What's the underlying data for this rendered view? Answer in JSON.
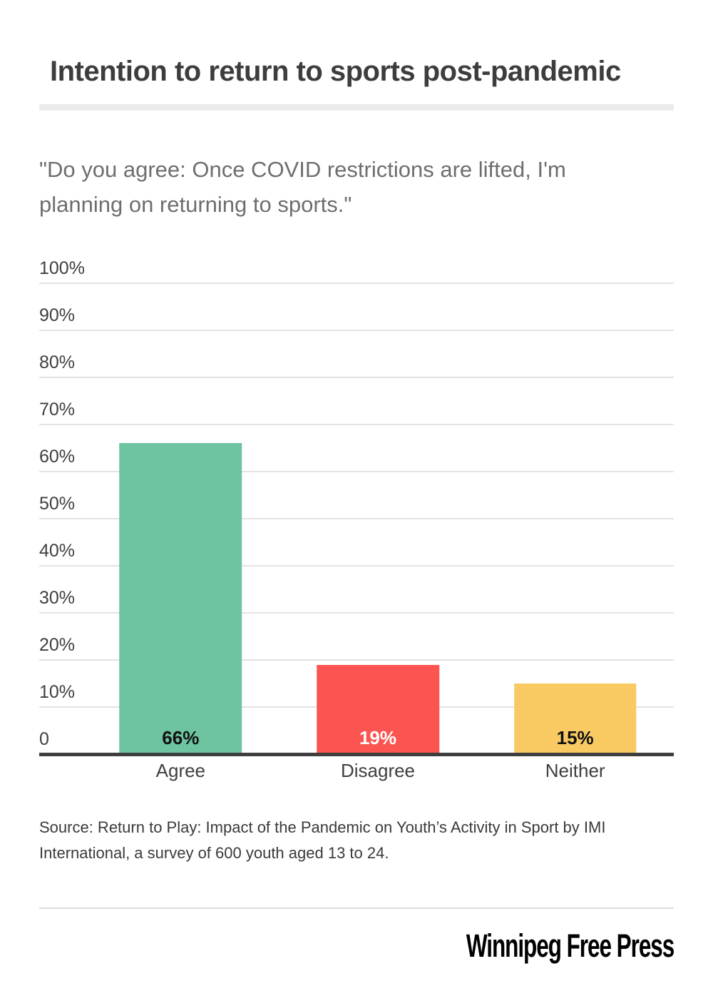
{
  "page": {
    "title": "Intention to return to sports post-pandemic",
    "subtitle": "\"Do you agree: Once COVID restrictions are lifted, I'm planning on returning to sports.\"",
    "source": "Source: Return to Play: Impact of the Pandemic on Youth’s Activity in Sport by IMI International, a survey of 600 youth aged 13 to 24.",
    "publisher": "Winnipeg Free Press"
  },
  "colors": {
    "title_text": "#3d3d3d",
    "subtitle_text": "#6e6e6e",
    "axis_text": "#3f3f3f",
    "gridline": "#e3e3e3",
    "axis_line": "#3e3e3e",
    "title_rule": "#ebebeb",
    "footer_rule": "#dcdcdc",
    "bar_green": "#6ec3a1",
    "bar_red": "#fc5451",
    "bar_yellow": "#f9ca62"
  },
  "chart_data": {
    "type": "bar",
    "title": "Intention to return to sports post-pandemic",
    "subtitle": "\"Do you agree: Once COVID restrictions are lifted, I'm planning on returning to sports.\"",
    "categories": [
      "Agree",
      "Disagree",
      "Neither"
    ],
    "values": [
      66,
      19,
      15
    ],
    "value_labels": [
      "66%",
      "19%",
      "15%"
    ],
    "bar_colors": [
      "#6ec3a1",
      "#fc5451",
      "#f9ca62"
    ],
    "value_label_colors": [
      "#111111",
      "#ffffff",
      "#111111"
    ],
    "xlabel": "",
    "ylabel": "",
    "ylim": [
      0,
      100
    ],
    "yticks": [
      {
        "value": 100,
        "label": "100%"
      },
      {
        "value": 90,
        "label": "90%"
      },
      {
        "value": 80,
        "label": "80%"
      },
      {
        "value": 70,
        "label": "70%"
      },
      {
        "value": 60,
        "label": "60%"
      },
      {
        "value": 50,
        "label": "50%"
      },
      {
        "value": 40,
        "label": "40%"
      },
      {
        "value": 30,
        "label": "30%"
      },
      {
        "value": 20,
        "label": "20%"
      },
      {
        "value": 10,
        "label": "10%"
      },
      {
        "value": 0,
        "label": "0"
      }
    ],
    "grid": true,
    "legend": "none",
    "source": "Source: Return to Play: Impact of the Pandemic on Youth’s Activity in Sport by IMI International, a survey of 600 youth aged 13 to 24."
  }
}
